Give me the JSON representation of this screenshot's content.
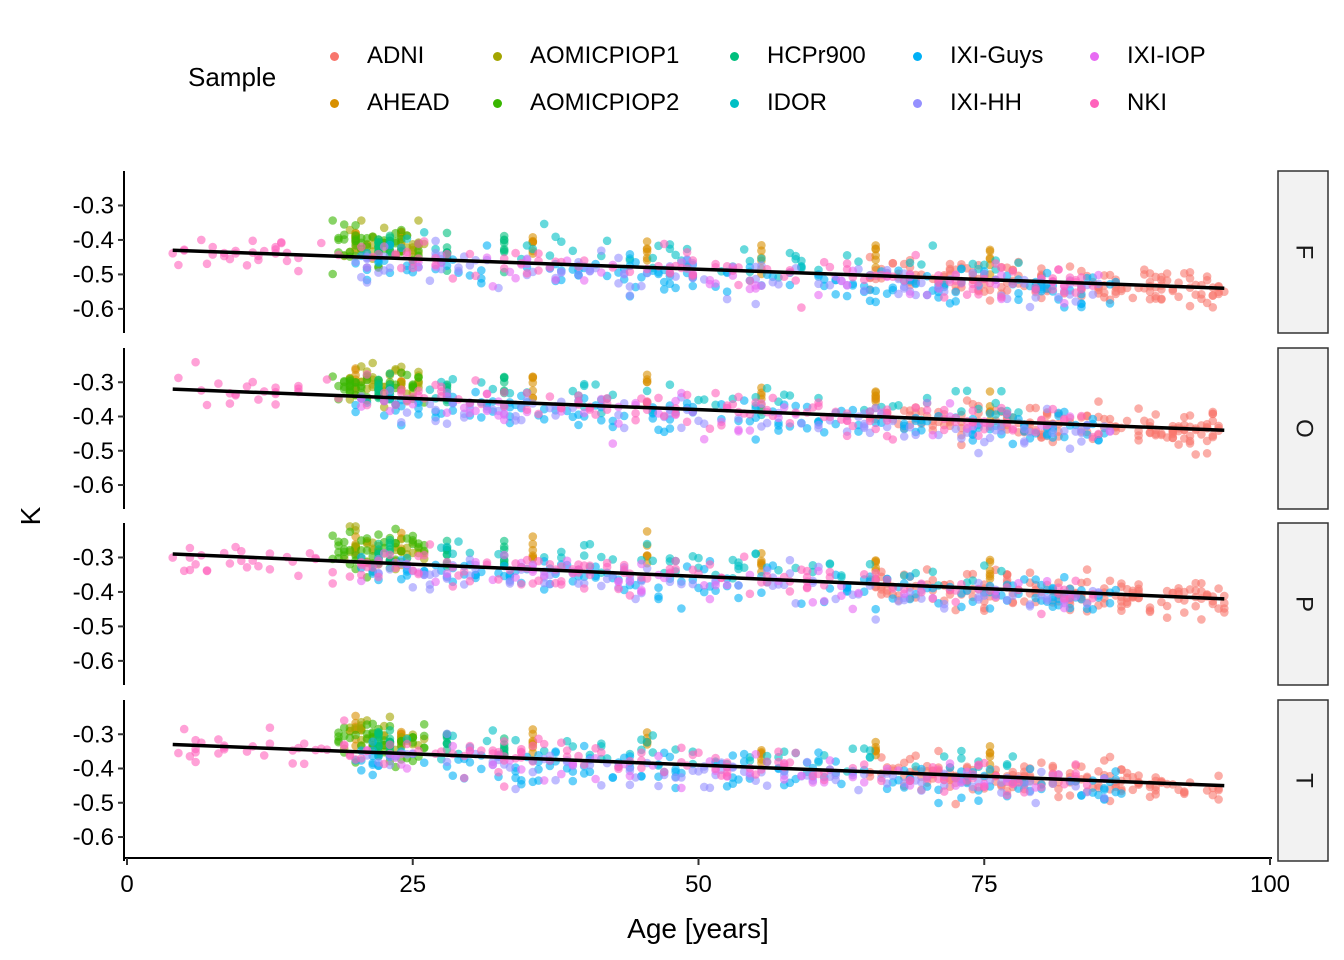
{
  "legend": {
    "title": "Sample",
    "items": [
      {
        "name": "ADNI",
        "color": "#F8766D"
      },
      {
        "name": "AHEAD",
        "color": "#D89000"
      },
      {
        "name": "AOMICPIOP1",
        "color": "#A3A500"
      },
      {
        "name": "AOMICPIOP2",
        "color": "#39B600"
      },
      {
        "name": "HCPr900",
        "color": "#00BF7D"
      },
      {
        "name": "IDOR",
        "color": "#00BFC4"
      },
      {
        "name": "IXI-Guys",
        "color": "#00B0F6"
      },
      {
        "name": "IXI-HH",
        "color": "#9590FF"
      },
      {
        "name": "IXI-IOP",
        "color": "#E76BF3"
      },
      {
        "name": "NKI",
        "color": "#FF62BC"
      }
    ]
  },
  "chart_data": {
    "type": "scatter",
    "facet_type": "vertical facets with right-side strip labels",
    "xlabel": "Age [years]",
    "ylabel": "K",
    "xlim": [
      0,
      100
    ],
    "ylim": [
      -0.67,
      -0.2
    ],
    "x_ticks": [
      "0",
      "25",
      "50",
      "75",
      "100"
    ],
    "x_tick_values": [
      0,
      25,
      50,
      75,
      100
    ],
    "y_ticks": [
      "-0.3",
      "-0.4",
      "-0.5",
      "-0.6"
    ],
    "y_tick_values": [
      -0.3,
      -0.4,
      -0.5,
      -0.6
    ],
    "grid": false,
    "legend_position": "top",
    "point_alpha": 0.6,
    "trend_line_color": "#000000",
    "series": [
      {
        "name": "ADNI",
        "x_range": [
          55,
          96
        ],
        "color": "#F8766D"
      },
      {
        "name": "AHEAD",
        "x_range": [
          20,
          77
        ],
        "color": "#D89000"
      },
      {
        "name": "AOMICPIOP1",
        "x_range": [
          19,
          26
        ],
        "color": "#A3A500"
      },
      {
        "name": "AOMICPIOP2",
        "x_range": [
          18,
          26
        ],
        "color": "#39B600"
      },
      {
        "name": "HCPr900",
        "x_range": [
          22,
          36
        ],
        "color": "#00BF7D"
      },
      {
        "name": "IDOR",
        "x_range": [
          24,
          78
        ],
        "color": "#00BFC4"
      },
      {
        "name": "IXI-Guys",
        "x_range": [
          20,
          87
        ],
        "color": "#00B0F6"
      },
      {
        "name": "IXI-HH",
        "x_range": [
          20,
          86
        ],
        "color": "#9590FF"
      },
      {
        "name": "IXI-IOP",
        "x_range": [
          20,
          86
        ],
        "color": "#E76BF3"
      },
      {
        "name": "NKI",
        "x_range": [
          4,
          85
        ],
        "color": "#FF62BC"
      }
    ],
    "facets": [
      {
        "label": "F",
        "trend": {
          "x": [
            4,
            96
          ],
          "y": [
            -0.43,
            -0.54
          ]
        }
      },
      {
        "label": "O",
        "trend": {
          "x": [
            4,
            96
          ],
          "y": [
            -0.32,
            -0.44
          ]
        }
      },
      {
        "label": "P",
        "trend": {
          "x": [
            4,
            96
          ],
          "y": [
            -0.29,
            -0.42
          ]
        }
      },
      {
        "label": "T",
        "trend": {
          "x": [
            4,
            96
          ],
          "y": [
            -0.33,
            -0.45
          ]
        }
      }
    ]
  }
}
